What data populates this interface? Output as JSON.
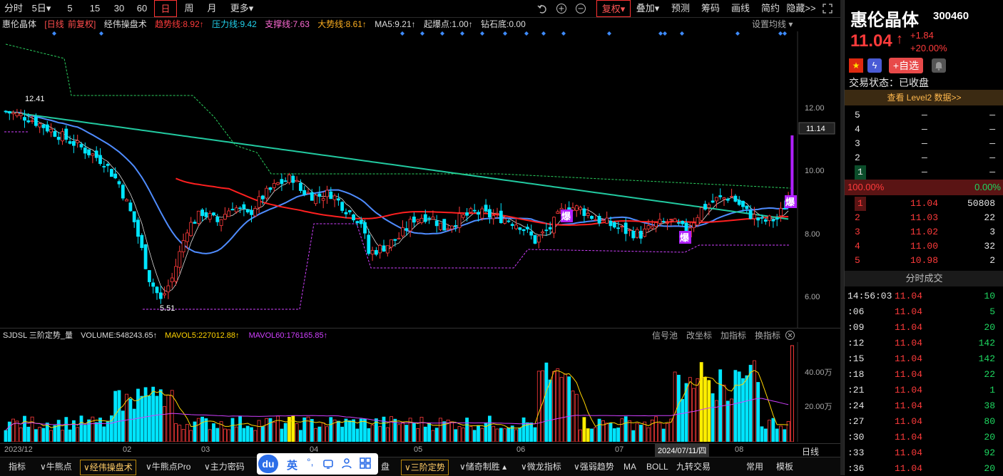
{
  "toolbar": {
    "items": [
      "分时",
      "5日▾",
      "5",
      "15",
      "30",
      "60",
      "日",
      "周",
      "月",
      "更多▾"
    ],
    "active": "日",
    "right_items": [
      "复权▾",
      "叠加▾",
      "预测",
      "筹码",
      "画线",
      "简约",
      "隐藏>>"
    ],
    "icons": [
      "undo-icon",
      "zoom-in-icon",
      "zoom-out-icon",
      "fullscreen-icon"
    ]
  },
  "indicators": {
    "stock": "惠伦晶体",
    "period": "[日线",
    "adjust": "前复权]",
    "name": "经伟操盘术",
    "trend": "趋势线:8.92↑",
    "pressure": "压力线:9.42",
    "support": "支撑线:7.63",
    "bigtrend": "大势线:8.61↑",
    "ma5": "MA5:9.21↑",
    "burst": "起爆点:1.00↑",
    "diamond": "钻石底:0.00",
    "settings": "设置均线 ▾"
  },
  "price_axis": [
    "12.00",
    "10.00",
    "8.00",
    "6.00"
  ],
  "price_tag": "11.14",
  "annotations": {
    "high": "12.41",
    "low": "5.51",
    "burst_label": "爆"
  },
  "volume_bar": {
    "name": "SJDSL 三阶定势_量",
    "volume": "VOLUME:548243.65↑",
    "mavol5": "MAVOL5:227012.88↑",
    "mavol60": "MAVOL60:176165.85↑",
    "tools": [
      "信号池",
      "改坐标",
      "加指标",
      "换指标"
    ]
  },
  "volume_axis": [
    "40.00万",
    "20.00万"
  ],
  "time_axis": [
    "2023/12",
    "02",
    "03",
    "04",
    "05",
    "06",
    "07",
    "2024/07/11/四",
    "08"
  ],
  "period_label": "日线",
  "bottom_tabs": [
    "指标",
    "∨牛熊点",
    "∨经伟操盘术",
    "∨牛熊点Pro",
    "∨主力密码",
    "盘",
    "∨三阶定势",
    "∨储奇制胜 ▴",
    "∨微龙指标",
    "∨强弱趋势",
    "MA",
    "BOLL",
    "九转交易",
    "常用",
    "模板"
  ],
  "bottom_selected": [
    "∨经伟操盘术",
    "∨三阶定势"
  ],
  "ime": {
    "logo": "du",
    "lang": "英",
    "punct": "°,"
  },
  "side": {
    "name": "惠伦晶体",
    "code": "300460",
    "price": "11.04",
    "arrow": "↑",
    "change": "+1.84",
    "pct": "+20.00%",
    "add_label": "+自选",
    "status": "交易状态：已收盘",
    "level2": "查看 Level2 数据>>",
    "asks": [
      {
        "lvl": "5",
        "price": "—",
        "vol": "—"
      },
      {
        "lvl": "4",
        "price": "—",
        "vol": "—"
      },
      {
        "lvl": "3",
        "price": "—",
        "vol": "—"
      },
      {
        "lvl": "2",
        "price": "—",
        "vol": "—"
      },
      {
        "lvl": "1",
        "price": "—",
        "vol": "—"
      }
    ],
    "ratio_left": "100.00%",
    "ratio_right": "0.00%",
    "bids": [
      {
        "lvl": "1",
        "price": "11.04",
        "vol": "50808"
      },
      {
        "lvl": "2",
        "price": "11.03",
        "vol": "22"
      },
      {
        "lvl": "3",
        "price": "11.02",
        "vol": "3"
      },
      {
        "lvl": "4",
        "price": "11.00",
        "vol": "32"
      },
      {
        "lvl": "5",
        "price": "10.98",
        "vol": "2"
      }
    ],
    "trades_title": "分时成交",
    "trades": [
      {
        "t": "14:56:03",
        "p": "11.04",
        "v": "10"
      },
      {
        "t": ":06",
        "p": "11.04",
        "v": "5"
      },
      {
        "t": ":09",
        "p": "11.04",
        "v": "20"
      },
      {
        "t": ":12",
        "p": "11.04",
        "v": "142"
      },
      {
        "t": ":15",
        "p": "11.04",
        "v": "142"
      },
      {
        "t": ":18",
        "p": "11.04",
        "v": "22"
      },
      {
        "t": ":21",
        "p": "11.04",
        "v": "1"
      },
      {
        "t": ":24",
        "p": "11.04",
        "v": "38"
      },
      {
        "t": ":27",
        "p": "11.04",
        "v": "80"
      },
      {
        "t": ":30",
        "p": "11.04",
        "v": "20"
      },
      {
        "t": ":33",
        "p": "11.04",
        "v": "92"
      },
      {
        "t": ":36",
        "p": "11.04",
        "v": "20"
      }
    ]
  },
  "colors": {
    "up": "#ff3b3b",
    "down": "#00e5ff",
    "ma_blue": "#4f8cff",
    "ma_green": "#22c9a0",
    "ma_red": "#ff2020",
    "burst": "#b020ff"
  }
}
